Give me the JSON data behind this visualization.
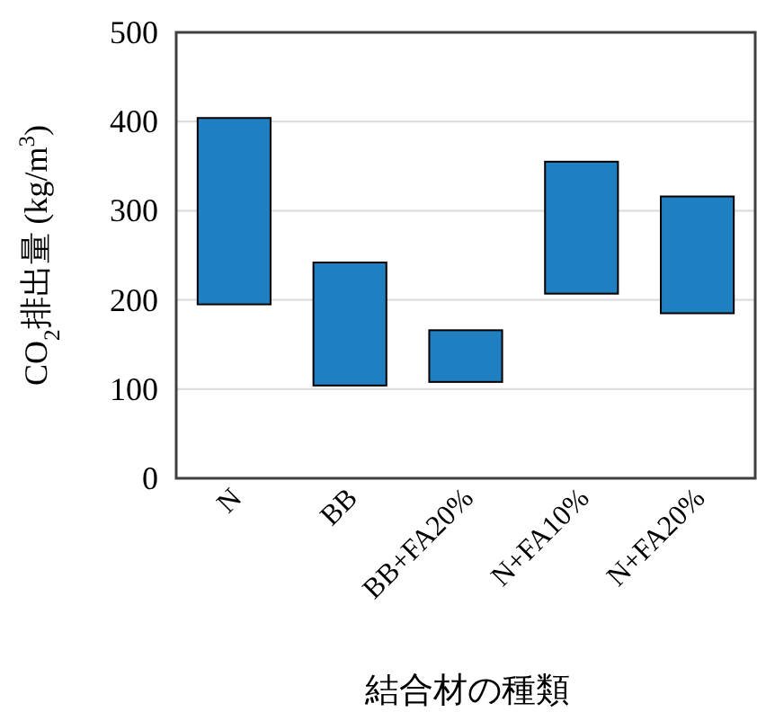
{
  "chart_data": {
    "type": "bar",
    "ylabel": "CO$_{2}$排出量 (kg/m$^{3}$)",
    "xlabel": "結合材の種類",
    "categories": [
      "N",
      "BB",
      "BB+FA20%",
      "N+FA10%",
      "N+FA20%"
    ],
    "base": [
      195,
      104,
      108,
      207,
      185
    ],
    "values": [
      209,
      138,
      58,
      148,
      131
    ],
    "color": "#1f7fc0",
    "ylim": [
      0,
      500
    ],
    "yticks": [
      0,
      100,
      200,
      300,
      400,
      500
    ],
    "grid": "y"
  }
}
